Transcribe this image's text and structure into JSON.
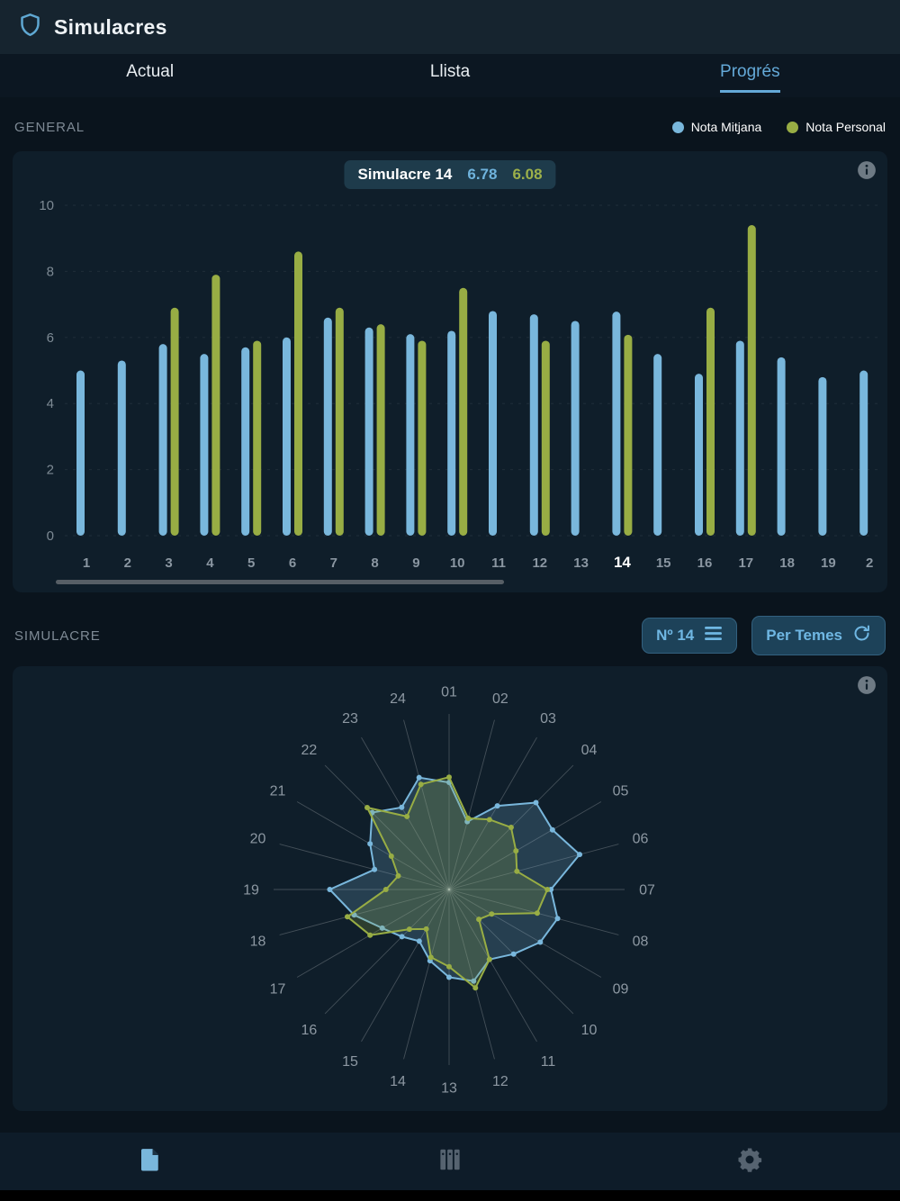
{
  "header": {
    "title": "Simulacres"
  },
  "tabs": [
    {
      "label": "Actual",
      "active": false
    },
    {
      "label": "Llista",
      "active": false
    },
    {
      "label": "Progrés",
      "active": true
    }
  ],
  "general": {
    "section_label": "GENERAL",
    "legend": [
      {
        "label": "Nota Mitjana",
        "color": "#79b7dc"
      },
      {
        "label": "Nota Personal",
        "color": "#98ad44"
      }
    ]
  },
  "tooltip": {
    "title": "Simulacre 14",
    "mitjana_value": "6.78",
    "personal_value": "6.08"
  },
  "simulacre": {
    "section_label": "SIMULACRE",
    "selector_button": {
      "label": "Nº 14"
    },
    "mode_button": {
      "label": "Per Temes"
    }
  },
  "colors": {
    "accent_blue": "#64a9d8",
    "bar_blue": "#79b7dc",
    "bar_green": "#98ad44",
    "panel_bg": "#0f1e2a",
    "page_bg": "#0a141d"
  },
  "chart_data": [
    {
      "type": "bar",
      "title": "",
      "xlabel": "",
      "ylabel": "",
      "categories": [
        "1",
        "2",
        "3",
        "4",
        "5",
        "6",
        "7",
        "8",
        "9",
        "10",
        "11",
        "12",
        "13",
        "14",
        "15",
        "16",
        "17",
        "18",
        "19",
        "2"
      ],
      "series": [
        {
          "name": "Nota Mitjana",
          "color": "#79b7dc",
          "values": [
            5.0,
            5.3,
            5.8,
            5.5,
            5.7,
            6.0,
            6.6,
            6.3,
            6.1,
            6.2,
            6.8,
            6.7,
            6.5,
            6.78,
            5.5,
            4.9,
            5.9,
            5.4,
            4.8,
            5.0
          ]
        },
        {
          "name": "Nota Personal",
          "color": "#98ad44",
          "values": [
            null,
            null,
            6.9,
            7.9,
            5.9,
            8.6,
            6.9,
            6.4,
            5.9,
            7.5,
            null,
            5.9,
            null,
            6.08,
            null,
            6.9,
            9.4,
            null,
            null,
            null
          ]
        }
      ],
      "ylim": [
        0,
        10
      ],
      "yticks": [
        0,
        2,
        4,
        6,
        8,
        10
      ],
      "highlighted_index": 13,
      "grid": true,
      "legend_position": "top-right"
    },
    {
      "type": "radar",
      "title": "",
      "categories": [
        "01",
        "02",
        "03",
        "04",
        "05",
        "06",
        "07",
        "08",
        "09",
        "10",
        "11",
        "12",
        "13",
        "14",
        "15",
        "16",
        "17",
        "18",
        "19",
        "20",
        "21",
        "22",
        "23",
        "24"
      ],
      "series": [
        {
          "name": "Nota Mitjana",
          "color": "#79b7dc",
          "values": [
            6.1,
            4.0,
            5.5,
            7.0,
            6.8,
            7.7,
            5.8,
            6.4,
            6.0,
            5.2,
            4.6,
            5.4,
            5.0,
            4.2,
            3.4,
            3.8,
            4.4,
            5.6,
            6.8,
            4.4,
            5.2,
            6.2,
            5.4,
            6.6
          ]
        },
        {
          "name": "Nota Personal",
          "color": "#98ad44",
          "values": [
            6.4,
            4.2,
            4.6,
            5.0,
            4.4,
            4.0,
            5.6,
            5.2,
            2.8,
            2.4,
            4.6,
            5.8,
            4.4,
            4.0,
            2.6,
            3.2,
            5.2,
            6.0,
            3.6,
            3.0,
            3.8,
            6.6,
            4.8,
            6.2
          ]
        }
      ],
      "rmax": 10,
      "grid": false,
      "legend_position": "none"
    }
  ]
}
